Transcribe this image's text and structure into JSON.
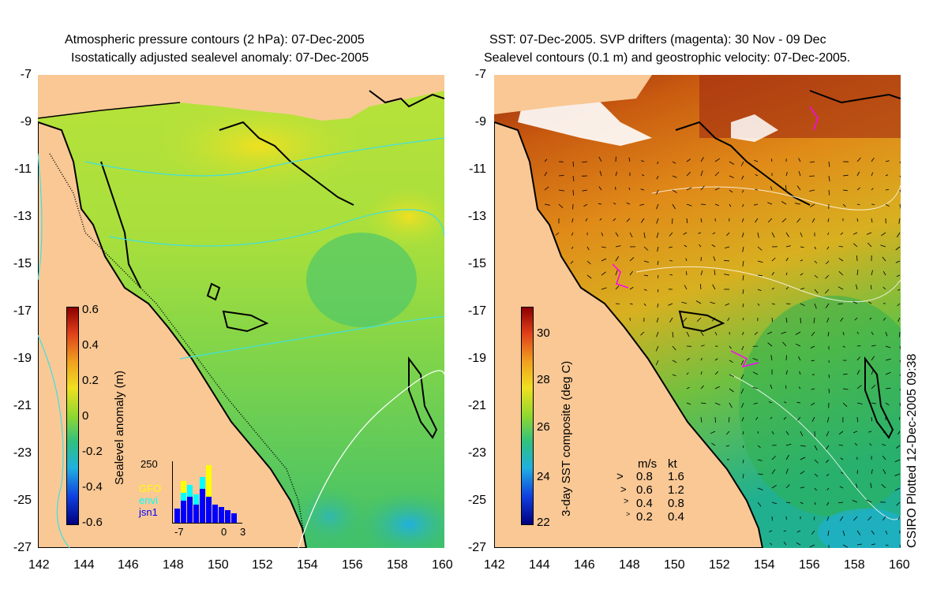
{
  "left_panel": {
    "title_line1": "Atmospheric pressure contours (2 hPa): 07-Dec-2005",
    "title_line2": "Isostatically adjusted sealevel anomaly: 07-Dec-2005",
    "colorbar": {
      "label": "Sealevel anomaly (m)",
      "ticks": [
        "0.6",
        "0.4",
        "0.2",
        "0",
        "-0.2",
        "-0.4",
        "-0.6"
      ]
    },
    "histogram": {
      "y_max_label": "250",
      "series": [
        "GFO",
        "envi",
        "jsn1"
      ],
      "series_colors": [
        "#ffff00",
        "#00ffff",
        "#0000ff"
      ],
      "x_tick_labels": [
        "-7",
        "0",
        "3"
      ]
    }
  },
  "right_panel": {
    "title_line1": "SST: 07-Dec-2005. SVP drifters (magenta): 30 Nov - 09 Dec",
    "title_line2": "Sealevel contours (0.1 m) and geostrophic velocity: 07-Dec-2005.",
    "colorbar": {
      "label": "3-day SST composite (deg C)",
      "ticks": [
        "30",
        "28",
        "26",
        "24",
        "22"
      ]
    },
    "velocity_key": {
      "header_ms": "m/s",
      "header_kt": "kt",
      "rows": [
        {
          "ms": "0.8",
          "kt": "1.6"
        },
        {
          "ms": "0.6",
          "kt": "1.2"
        },
        {
          "ms": "0.4",
          "kt": "0.8"
        },
        {
          "ms": "0.2",
          "kt": "0.4"
        }
      ]
    }
  },
  "axes": {
    "y_labels": [
      "-7",
      "-9",
      "-11",
      "-13",
      "-15",
      "-17",
      "-19",
      "-21",
      "-23",
      "-25",
      "-27"
    ],
    "x_labels": [
      "142",
      "144",
      "146",
      "148",
      "150",
      "152",
      "154",
      "156",
      "158",
      "160"
    ]
  },
  "credit": "CSIRO Plotted 12-Dec-2005 09:38",
  "colors": {
    "land": "#f9c895",
    "coast": "#000000",
    "pressure_contour": "#40e0e0",
    "drifter": "#ff00ff"
  }
}
